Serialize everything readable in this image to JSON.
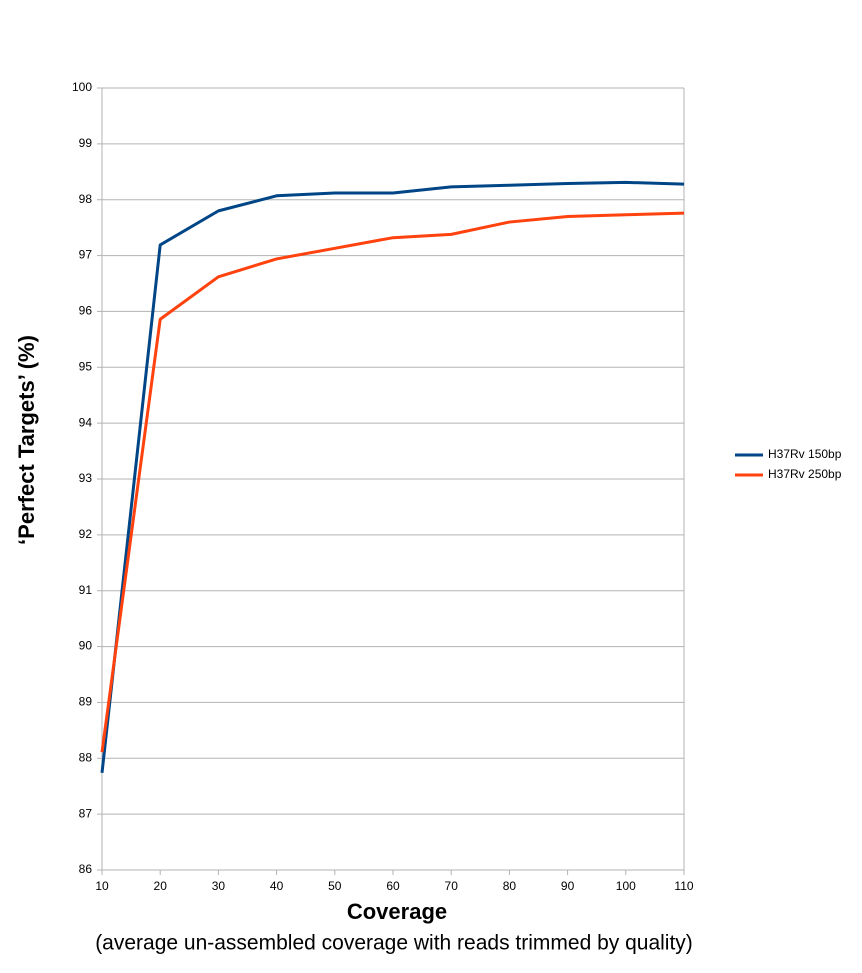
{
  "chart_data": {
    "type": "line",
    "y_label": "‘Perfect Targets’ (%)",
    "x_label": "Coverage",
    "x_sublabel": "(average un-assembled coverage with reads trimmed by quality)",
    "x": [
      10,
      20,
      30,
      40,
      50,
      60,
      70,
      80,
      90,
      100,
      110
    ],
    "series": [
      {
        "name": "H37Rv 150bp",
        "color": "#004586",
        "values": [
          87.74,
          97.19,
          97.8,
          98.07,
          98.12,
          98.12,
          98.23,
          98.26,
          98.29,
          98.31,
          98.28
        ]
      },
      {
        "name": "H37Rv 250bp",
        "color": "#ff420e",
        "values": [
          88.11,
          95.86,
          96.62,
          96.94,
          97.13,
          97.32,
          97.38,
          97.6,
          97.7,
          97.73,
          97.76
        ]
      }
    ],
    "xlim": [
      10,
      110
    ],
    "xticks": [
      10,
      20,
      30,
      40,
      50,
      60,
      70,
      80,
      90,
      100,
      110
    ],
    "ylim": [
      86,
      100
    ],
    "yticks": [
      86,
      87,
      88,
      89,
      90,
      91,
      92,
      93,
      94,
      95,
      96,
      97,
      98,
      99,
      100
    ],
    "grid": true,
    "legend": "right"
  }
}
